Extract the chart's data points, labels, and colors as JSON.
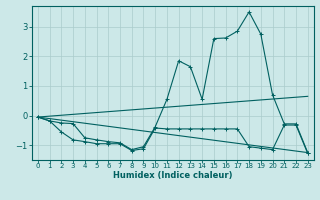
{
  "xlabel": "Humidex (Indice chaleur)",
  "background_color": "#cce8e8",
  "grid_color": "#aacccc",
  "line_color": "#006060",
  "xlim": [
    -0.5,
    23.5
  ],
  "ylim": [
    -1.5,
    3.7
  ],
  "xticks": [
    0,
    1,
    2,
    3,
    4,
    5,
    6,
    7,
    8,
    9,
    10,
    11,
    12,
    13,
    14,
    15,
    16,
    17,
    18,
    19,
    20,
    21,
    22,
    23
  ],
  "yticks": [
    -1,
    0,
    1,
    2,
    3
  ],
  "line1_marked": {
    "x": [
      0,
      1,
      2,
      3,
      4,
      5,
      6,
      7,
      8,
      9,
      10,
      11,
      12,
      13,
      14,
      15,
      16,
      17,
      18,
      19,
      20,
      21,
      22,
      23
    ],
    "y": [
      -0.05,
      -0.18,
      -0.25,
      -0.27,
      -0.75,
      -0.82,
      -0.88,
      -0.92,
      -1.15,
      -1.05,
      -0.38,
      0.55,
      1.85,
      1.65,
      0.55,
      2.6,
      2.62,
      2.85,
      3.5,
      2.75,
      0.7,
      -0.28,
      -0.28,
      -1.25
    ]
  },
  "line2_plain": {
    "x": [
      0,
      23
    ],
    "y": [
      -0.05,
      0.65
    ]
  },
  "line3_plain": {
    "x": [
      0,
      23
    ],
    "y": [
      -0.05,
      -1.25
    ]
  },
  "line4_marked": {
    "x": [
      0,
      1,
      2,
      3,
      4,
      5,
      6,
      7,
      8,
      9,
      10,
      11,
      12,
      13,
      14,
      15,
      16,
      17,
      18,
      19,
      20,
      21,
      22,
      23
    ],
    "y": [
      -0.05,
      -0.18,
      -0.55,
      -0.82,
      -0.88,
      -0.95,
      -0.95,
      -0.95,
      -1.18,
      -1.12,
      -0.42,
      -0.45,
      -0.45,
      -0.45,
      -0.45,
      -0.45,
      -0.45,
      -0.45,
      -1.05,
      -1.1,
      -1.15,
      -0.32,
      -0.32,
      -1.28
    ]
  }
}
